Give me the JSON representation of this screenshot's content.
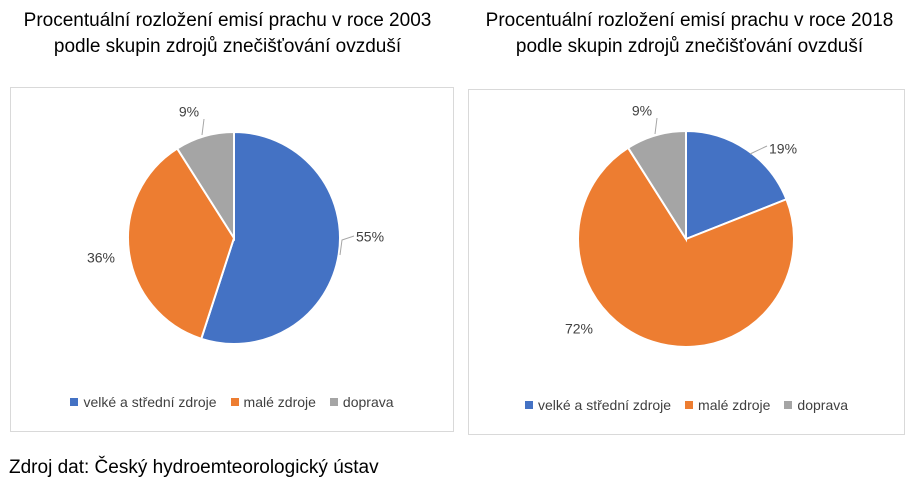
{
  "charts": [
    {
      "title_lines": [
        "Procentuální rozložení emisí prachu v roce 2003",
        "podle skupin zdrojů znečišťování ovzduší"
      ]
    },
    {
      "title_lines": [
        "Procentuální rozložení emisí prachu v roce 2018",
        "podle skupin zdrojů znečišťování ovzduší"
      ]
    }
  ],
  "legend_labels": [
    "velké a střední zdroje",
    "malé zdroje",
    "doprava"
  ],
  "colors": {
    "velke_a_stredni_zdroje": "#4472C4",
    "male_zdroje": "#ED7D31",
    "doprava": "#A5A5A5"
  },
  "source_note": "Zdroj dat: Český hydroemteorologický ústav",
  "chart_data": [
    {
      "type": "pie",
      "title": "Procentuální rozložení emisí prachu v roce 2003 podle skupin zdrojů znečišťování ovzduší",
      "categories": [
        "velké a střední zdroje",
        "malé zdroje",
        "doprava"
      ],
      "values": [
        55,
        36,
        9
      ],
      "data_labels": [
        "55%",
        "36%",
        "9%"
      ],
      "legend_position": "bottom"
    },
    {
      "type": "pie",
      "title": "Procentuální rozložení emisí prachu v roce 2018 podle skupin zdrojů znečišťování ovzduší",
      "categories": [
        "velké a střední zdroje",
        "malé zdroje",
        "doprava"
      ],
      "values": [
        19,
        72,
        9
      ],
      "data_labels": [
        "19%",
        "72%",
        "9%"
      ],
      "legend_position": "bottom"
    }
  ]
}
